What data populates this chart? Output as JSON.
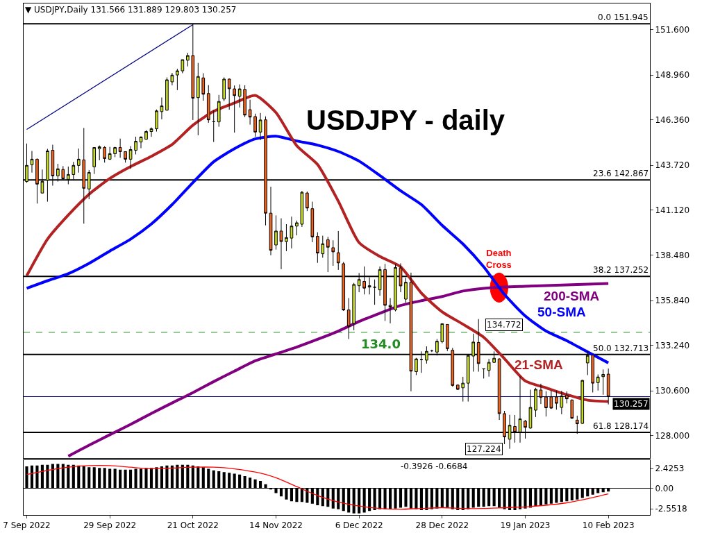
{
  "chart_data": [
    {
      "type": "candlestick",
      "title": "USDJPY - daily",
      "categories": [
        "7 Sep 2022",
        null,
        null,
        null,
        null,
        null,
        null,
        null,
        null,
        null,
        null,
        null,
        null,
        null,
        null,
        null,
        "29 Sep 2022",
        null,
        null,
        null,
        null,
        null,
        null,
        null,
        null,
        null,
        null,
        null,
        null,
        null,
        null,
        null,
        "21 Oct 2022",
        null,
        null,
        null,
        null,
        null,
        null,
        null,
        null,
        null,
        null,
        null,
        null,
        null,
        null,
        null,
        "14 Nov 2022",
        null,
        null,
        null,
        null,
        null,
        null,
        null,
        null,
        null,
        null,
        null,
        null,
        null,
        null,
        null,
        "6 Dec 2022",
        null,
        null,
        null,
        null,
        null,
        null,
        null,
        null,
        null,
        null,
        null,
        null,
        null,
        null,
        null,
        "28 Dec 2022",
        null,
        null,
        null,
        null,
        null,
        null,
        null,
        null,
        null,
        null,
        null,
        null,
        null,
        null,
        null,
        "19 Jan 2023",
        null,
        null,
        null,
        null,
        null,
        null,
        null,
        null,
        null,
        null,
        null,
        null,
        null,
        null,
        null,
        "10 Feb 2023"
      ],
      "ohlc": [
        [
          142.77,
          144.98,
          142.7,
          143.71
        ],
        [
          143.75,
          144.55,
          143.29,
          144.07
        ],
        [
          144.07,
          144.11,
          141.49,
          142.62
        ],
        [
          142.1,
          143.47,
          142.1,
          142.78
        ],
        [
          142.84,
          144.67,
          141.6,
          144.55
        ],
        [
          144.59,
          144.91,
          142.53,
          143.1
        ],
        [
          143.1,
          143.8,
          142.77,
          143.51
        ],
        [
          143.47,
          143.67,
          142.84,
          142.93
        ],
        [
          142.9,
          143.64,
          142.61,
          143.18
        ],
        [
          143.18,
          143.91,
          142.9,
          143.71
        ],
        [
          143.71,
          144.69,
          143.29,
          144.07
        ],
        [
          144.03,
          145.89,
          140.32,
          142.38
        ],
        [
          142.34,
          143.44,
          141.74,
          143.3
        ],
        [
          143.63,
          144.75,
          143.21,
          144.75
        ],
        [
          144.67,
          144.87,
          144.01,
          144.79
        ],
        [
          144.75,
          144.83,
          143.87,
          144.11
        ],
        [
          144.07,
          144.79,
          144.03,
          144.39
        ],
        [
          144.39,
          144.79,
          144.19,
          144.75
        ],
        [
          144.75,
          145.27,
          144.15,
          144.51
        ],
        [
          144.51,
          144.51,
          143.87,
          144.07
        ],
        [
          144.07,
          144.83,
          143.51,
          144.63
        ],
        [
          144.59,
          145.38,
          144.35,
          145.11
        ],
        [
          145.07,
          145.4,
          144.71,
          145.36
        ],
        [
          145.23,
          145.76,
          145.21,
          145.68
        ],
        [
          145.68,
          145.92,
          145.38,
          145.84
        ],
        [
          145.84,
          146.96,
          145.68,
          146.88
        ],
        [
          146.84,
          147.66,
          146.39,
          147.17
        ],
        [
          146.92,
          148.83,
          146.9,
          148.69
        ],
        [
          148.57,
          149.09,
          148.37,
          148.96
        ],
        [
          148.97,
          149.33,
          148.09,
          149.21
        ],
        [
          149.21,
          149.86,
          149.07,
          149.86
        ],
        [
          149.83,
          150.26,
          149.47,
          150.1
        ],
        [
          150.1,
          151.945,
          146.35,
          147.62
        ],
        [
          147.65,
          149.67,
          145.46,
          148.88
        ],
        [
          148.8,
          149.07,
          147.47,
          147.85
        ],
        [
          147.89,
          148.38,
          146.19,
          146.36
        ],
        [
          146.25,
          146.92,
          145.07,
          146.25
        ],
        [
          146.24,
          147.81,
          145.96,
          147.43
        ],
        [
          147.57,
          148.83,
          147.44,
          148.73
        ],
        [
          148.73,
          148.77,
          146.95,
          148.17
        ],
        [
          148.16,
          148.36,
          145.62,
          147.77
        ],
        [
          147.73,
          148.42,
          147.08,
          148.16
        ],
        [
          148.13,
          148.37,
          146.52,
          146.64
        ],
        [
          146.95,
          147.53,
          146.08,
          146.52
        ],
        [
          146.55,
          146.72,
          145.38,
          145.65
        ],
        [
          145.65,
          146.76,
          145.18,
          146.35
        ],
        [
          146.36,
          146.56,
          140.22,
          140.93
        ],
        [
          140.93,
          142.47,
          138.48,
          138.77
        ],
        [
          139.08,
          140.8,
          138.81,
          139.89
        ],
        [
          139.89,
          140.63,
          137.67,
          139.28
        ],
        [
          139.28,
          140.29,
          138.72,
          139.51
        ],
        [
          139.48,
          140.73,
          138.88,
          140.18
        ],
        [
          140.18,
          140.5,
          139.64,
          140.37
        ],
        [
          140.29,
          142.23,
          140.13,
          142.14
        ],
        [
          142.1,
          142.19,
          141.05,
          141.23
        ],
        [
          141.19,
          141.6,
          139.24,
          139.55
        ],
        [
          139.58,
          139.82,
          138.04,
          138.61
        ],
        [
          138.57,
          139.62,
          138.34,
          139.15
        ],
        [
          139.38,
          139.55,
          137.5,
          138.95
        ],
        [
          138.92,
          139.35,
          137.87,
          138.68
        ],
        [
          138.63,
          139.89,
          137.63,
          138.04
        ],
        [
          137.99,
          138.09,
          135.24,
          135.3
        ],
        [
          135.3,
          135.99,
          133.61,
          134.35
        ],
        [
          134.52,
          136.87,
          134.12,
          136.78
        ],
        [
          136.71,
          137.45,
          136.33,
          137.07
        ],
        [
          136.96,
          137.83,
          136.2,
          136.57
        ],
        [
          136.63,
          137.2,
          136.2,
          136.71
        ],
        [
          136.62,
          137.07,
          135.6,
          136.62
        ],
        [
          136.47,
          137.83,
          136.13,
          137.65
        ],
        [
          137.65,
          137.98,
          134.66,
          135.57
        ],
        [
          135.57,
          135.99,
          134.52,
          135.46
        ],
        [
          135.3,
          137.97,
          135.22,
          137.77
        ],
        [
          137.74,
          138.01,
          136.33,
          136.7
        ],
        [
          135.93,
          137.18,
          135.73,
          136.91
        ],
        [
          136.91,
          137.47,
          130.57,
          131.74
        ],
        [
          131.71,
          132.51,
          131.51,
          132.45
        ],
        [
          132.41,
          132.89,
          131.64,
          132.41
        ],
        [
          132.38,
          133.18,
          132.18,
          132.89
        ],
        [
          132.92,
          132.99,
          132.85,
          132.92
        ],
        [
          132.85,
          133.61,
          132.65,
          133.48
        ],
        [
          133.45,
          134.5,
          133.36,
          134.5
        ],
        [
          134.46,
          134.46,
          132.91,
          133.05
        ],
        [
          132.96,
          133.09,
          130.84,
          130.91
        ],
        [
          130.93,
          130.97,
          130.64,
          130.68
        ],
        [
          130.77,
          131.41,
          129.97,
          131.04
        ],
        [
          131.04,
          132.72,
          129.97,
          132.65
        ],
        [
          132.62,
          133.92,
          131.71,
          133.43
        ],
        [
          133.41,
          134.772,
          131.71,
          132.18
        ],
        [
          131.88,
          131.89,
          131.31,
          131.87
        ],
        [
          131.78,
          132.45,
          131.42,
          132.25
        ],
        [
          132.25,
          132.89,
          132.22,
          132.49
        ],
        [
          132.45,
          132.49,
          128.9,
          129.27
        ],
        [
          129.27,
          129.43,
          127.49,
          127.92
        ],
        [
          127.78,
          129.2,
          127.224,
          128.59
        ],
        [
          128.52,
          129.19,
          127.58,
          128.2
        ],
        [
          128.2,
          131.44,
          127.58,
          128.96
        ],
        [
          128.83,
          128.9,
          127.82,
          128.47
        ],
        [
          128.43,
          130.66,
          128.39,
          129.63
        ],
        [
          129.47,
          130.77,
          129.07,
          130.68
        ],
        [
          130.64,
          131.01,
          129.83,
          130.21
        ],
        [
          130.24,
          130.57,
          129.1,
          129.61
        ],
        [
          130.24,
          130.61,
          129.54,
          129.59
        ],
        [
          130.24,
          130.6,
          129.5,
          129.87
        ],
        [
          129.63,
          130.6,
          129.23,
          130.3
        ],
        [
          130.33,
          130.56,
          129.86,
          130.13
        ],
        [
          130.06,
          130.1,
          128.96,
          129.0
        ],
        [
          128.89,
          129.15,
          128.09,
          128.68
        ],
        [
          128.7,
          131.24,
          128.67,
          131.2
        ],
        [
          132.22,
          132.92,
          131.51,
          132.65
        ],
        [
          132.67,
          132.67,
          130.5,
          131.04
        ],
        [
          131.07,
          131.55,
          130.61,
          131.4
        ],
        [
          131.42,
          131.84,
          130.37,
          131.55
        ],
        [
          131.566,
          131.889,
          129.803,
          130.257
        ]
      ],
      "series": [
        {
          "type": "line",
          "name": "200-SMA",
          "color": "#800080",
          "values": [
            null,
            null,
            null,
            null,
            null,
            null,
            null,
            null,
            126.79,
            null,
            null,
            null,
            127.43,
            null,
            null,
            null,
            128.04,
            null,
            null,
            null,
            128.64,
            null,
            null,
            null,
            129.28,
            null,
            null,
            null,
            129.89,
            null,
            null,
            null,
            130.49,
            null,
            null,
            null,
            131.13,
            null,
            null,
            null,
            131.74,
            null,
            null,
            null,
            132.34,
            null,
            null,
            null,
            132.74,
            null,
            null,
            null,
            133.14,
            null,
            null,
            null,
            133.59,
            null,
            null,
            null,
            134.07,
            null,
            null,
            null,
            134.63,
            null,
            null,
            null,
            135.11,
            null,
            null,
            null,
            135.56,
            null,
            null,
            null,
            135.84,
            null,
            null,
            null,
            136.08,
            null,
            null,
            null,
            136.4,
            null,
            null,
            null,
            136.56,
            null,
            null,
            null,
            136.64,
            null,
            null,
            null,
            136.68,
            null,
            null,
            null,
            136.72,
            null,
            null,
            null,
            136.76,
            null,
            null,
            null,
            136.8,
            null,
            null,
            null,
            136.84
          ]
        },
        {
          "type": "line",
          "name": "50-SMA",
          "color": "#0000ff",
          "values": [
            136.56,
            null,
            null,
            null,
            137.0,
            null,
            null,
            null,
            137.41,
            null,
            null,
            null,
            138.01,
            null,
            null,
            null,
            138.73,
            null,
            null,
            null,
            139.42,
            null,
            null,
            null,
            140.3,
            null,
            null,
            null,
            141.43,
            null,
            null,
            null,
            142.71,
            null,
            null,
            null,
            143.92,
            null,
            null,
            null,
            144.68,
            null,
            null,
            null,
            145.25,
            null,
            null,
            null,
            145.41,
            null,
            null,
            null,
            145.13,
            null,
            null,
            null,
            144.89,
            null,
            null,
            null,
            144.52,
            null,
            null,
            null,
            143.96,
            null,
            null,
            null,
            143.12,
            null,
            null,
            null,
            142.23,
            null,
            null,
            null,
            141.43,
            null,
            null,
            null,
            140.22,
            null,
            null,
            null,
            139.14,
            null,
            null,
            null,
            137.81,
            null,
            null,
            null,
            136.2,
            null,
            null,
            null,
            134.95,
            null,
            null,
            null,
            134.07,
            null,
            null,
            null,
            133.51,
            null,
            null,
            null,
            132.86,
            null,
            null,
            null,
            132.22
          ]
        },
        {
          "type": "line",
          "name": "21-SMA",
          "color": "#b22222",
          "values": [
            137.29,
            null,
            null,
            null,
            139.42,
            null,
            null,
            null,
            140.82,
            null,
            null,
            null,
            142.03,
            null,
            null,
            null,
            142.95,
            null,
            null,
            null,
            143.64,
            null,
            null,
            null,
            144.24,
            null,
            null,
            null,
            144.93,
            null,
            null,
            null,
            146.05,
            null,
            null,
            null,
            146.86,
            null,
            null,
            null,
            147.34,
            null,
            null,
            null,
            147.78,
            null,
            null,
            null,
            146.78,
            null,
            null,
            null,
            144.85,
            null,
            null,
            null,
            143.76,
            null,
            null,
            null,
            141.63,
            null,
            null,
            null,
            139.22,
            null,
            null,
            null,
            138.41,
            null,
            null,
            null,
            137.81,
            null,
            null,
            null,
            136.28,
            null,
            null,
            null,
            135.19,
            null,
            null,
            null,
            134.47,
            null,
            null,
            null,
            133.71,
            null,
            null,
            null,
            132.46,
            null,
            null,
            null,
            131.17,
            null,
            null,
            null,
            130.77,
            null,
            null,
            null,
            130.37,
            null,
            null,
            null,
            130.05,
            null,
            null,
            null,
            129.97
          ]
        },
        {
          "type": "line",
          "color": "#000080",
          "x": [
            "7 Sep 2022",
            "21 Oct 2022"
          ],
          "values": [
            145.8,
            151.9
          ]
        }
      ],
      "ylim": [
        126.67,
        153.13
      ],
      "yticks": [
        {
          "value": 151.6,
          "label": "151.600"
        },
        {
          "value": 148.96,
          "label": "148.960"
        },
        {
          "value": 146.36,
          "label": "146.360"
        },
        {
          "value": 143.72,
          "label": "143.720"
        },
        {
          "value": 141.12,
          "label": "141.120"
        },
        {
          "value": 138.48,
          "label": "138.480"
        },
        {
          "value": 135.84,
          "label": "135.840"
        },
        {
          "value": 133.24,
          "label": "133.240"
        },
        {
          "value": 130.6,
          "label": "130.600"
        },
        {
          "value": 128.0,
          "label": "128.000"
        }
      ],
      "ref_lines": [
        {
          "axis": "y",
          "value": 151.945,
          "label": "0.0 151.945",
          "color": "#000000"
        },
        {
          "axis": "y",
          "value": 142.867,
          "label": "23.6 142.867",
          "color": "#000000"
        },
        {
          "axis": "y",
          "value": 137.252,
          "label": "38.2 137.252",
          "color": "#000000"
        },
        {
          "axis": "y",
          "value": 132.713,
          "label": "50.0 132.713",
          "color": "#000000"
        },
        {
          "axis": "y",
          "value": 128.174,
          "label": "61.8 128.174",
          "color": "#000000"
        },
        {
          "axis": "y",
          "value": 134.0,
          "label": "134.0",
          "color": "#228b22",
          "line_style": "dashed"
        },
        {
          "axis": "y",
          "value": 130.257,
          "label": "130.257",
          "color": "#000080"
        }
      ],
      "annotations": [
        "▼ USDJPY,Daily 131.566 131.889 129.803 130.257",
        {
          "text": "Death Cross",
          "y": 136.6
        },
        "134.772",
        "127.224"
      ],
      "tick_labels": "y"
    },
    {
      "type": "bar",
      "categories": [
        "7 Sep 2022",
        null,
        null,
        null,
        null,
        null,
        null,
        null,
        null,
        null,
        null,
        null,
        null,
        null,
        null,
        null,
        "29 Sep 2022",
        null,
        null,
        null,
        null,
        null,
        null,
        null,
        null,
        null,
        null,
        null,
        null,
        null,
        null,
        null,
        "21 Oct 2022",
        null,
        null,
        null,
        null,
        null,
        null,
        null,
        null,
        null,
        null,
        null,
        null,
        null,
        null,
        null,
        "14 Nov 2022",
        null,
        null,
        null,
        null,
        null,
        null,
        null,
        null,
        null,
        null,
        null,
        null,
        null,
        null,
        null,
        "6 Dec 2022",
        null,
        null,
        null,
        null,
        null,
        null,
        null,
        null,
        null,
        null,
        null,
        null,
        null,
        null,
        null,
        "28 Dec 2022",
        null,
        null,
        null,
        null,
        null,
        null,
        null,
        null,
        null,
        null,
        null,
        null,
        null,
        null,
        null,
        "19 Jan 2023",
        null,
        null,
        null,
        null,
        null,
        null,
        null,
        null,
        null,
        null,
        null,
        null,
        null,
        null,
        null,
        "10 Feb 2023"
      ],
      "series": [
        {
          "type": "bar",
          "color": "#000000",
          "values": [
            2.7,
            2.8,
            2.8,
            2.9,
            2.9,
            3.0,
            3.0,
            3.0,
            2.9,
            2.9,
            2.8,
            2.7,
            2.6,
            2.6,
            2.5,
            2.5,
            2.4,
            2.4,
            2.3,
            2.3,
            2.3,
            2.4,
            2.4,
            2.5,
            2.5,
            2.6,
            2.7,
            2.8,
            2.8,
            2.9,
            2.9,
            2.9,
            2.8,
            2.7,
            2.6,
            2.4,
            2.2,
            2.1,
            2.0,
            1.9,
            1.8,
            1.7,
            1.5,
            1.3,
            1.1,
            0.9,
            0.5,
            -0.1,
            -0.6,
            -1.0,
            -1.4,
            -1.6,
            -1.7,
            -1.7,
            -1.8,
            -1.9,
            -2.1,
            -2.2,
            -2.3,
            -2.5,
            -2.6,
            -2.8,
            -3.0,
            -3.1,
            -3.1,
            -3.0,
            -2.8,
            -2.7,
            -2.6,
            -2.6,
            -2.6,
            -2.5,
            -2.4,
            -2.3,
            -2.5,
            -2.6,
            -2.7,
            -2.7,
            -2.6,
            -2.5,
            -2.4,
            -2.4,
            -2.6,
            -2.7,
            -2.7,
            -2.6,
            -2.4,
            -2.3,
            -2.3,
            -2.2,
            -2.2,
            -2.4,
            -2.6,
            -2.7,
            -2.7,
            -2.6,
            -2.5,
            -2.4,
            -2.2,
            -2.1,
            -2.0,
            -1.9,
            -1.8,
            -1.7,
            -1.6,
            -1.5,
            -1.4,
            -1.2,
            -1.0,
            -0.8,
            -0.6,
            -0.5,
            -0.4
          ]
        },
        {
          "type": "line",
          "color": "#ff0000",
          "values": [
            1.7,
            null,
            null,
            null,
            2.2,
            null,
            null,
            null,
            2.6,
            null,
            null,
            null,
            2.8,
            null,
            null,
            null,
            2.8,
            null,
            null,
            null,
            2.6,
            null,
            null,
            null,
            2.4,
            null,
            null,
            null,
            2.5,
            null,
            null,
            null,
            2.6,
            null,
            null,
            null,
            2.6,
            null,
            null,
            null,
            2.4,
            null,
            null,
            null,
            2.0,
            null,
            null,
            null,
            1.3,
            null,
            null,
            null,
            0.2,
            null,
            null,
            null,
            -0.9,
            null,
            null,
            null,
            -1.7,
            null,
            null,
            null,
            -2.2,
            null,
            null,
            null,
            -2.5,
            null,
            null,
            null,
            -2.6,
            null,
            null,
            null,
            -2.5,
            null,
            null,
            null,
            -2.4,
            null,
            null,
            null,
            -2.5,
            null,
            null,
            null,
            -2.5,
            null,
            null,
            null,
            -2.4,
            null,
            null,
            null,
            -2.3,
            null,
            null,
            null,
            -2.1,
            null,
            null,
            null,
            -1.8,
            null,
            null,
            null,
            -1.3,
            null,
            null,
            null,
            -0.7
          ]
        }
      ],
      "ylim": [
        -3.3,
        3.45
      ],
      "yticks": [
        2.4253,
        {
          "value": 0,
          "label": "0.00"
        },
        -2.5518
      ],
      "ref_lines": [
        {
          "axis": "y",
          "value": 0,
          "color": "#000000"
        }
      ],
      "annotations": [
        "-0.3926 -0.6684"
      ]
    }
  ]
}
